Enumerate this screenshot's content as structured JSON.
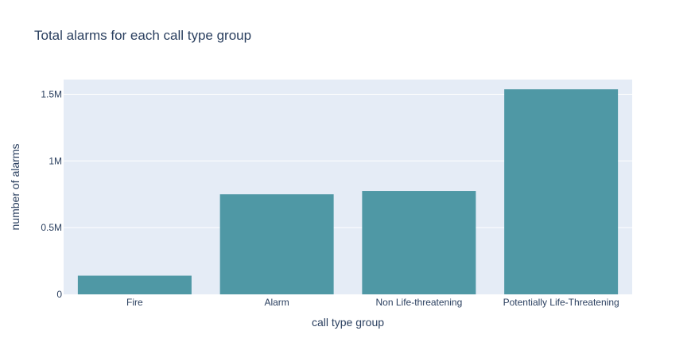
{
  "colors": {
    "plot_background": "#e5ecf6",
    "gridline": "#ffffff",
    "bar": "#4f98a5",
    "text": "#2a3f5f"
  },
  "chart_data": {
    "type": "bar",
    "title": "Total alarms for each call type group",
    "xlabel": "call type group",
    "ylabel": "number of alarms",
    "categories": [
      "Fire",
      "Alarm",
      "Non Life-threatening",
      "Potentially Life-Threatening"
    ],
    "values": [
      140000,
      750000,
      775000,
      1537000
    ],
    "ylim": [
      0,
      1610000
    ],
    "yticks": [
      {
        "value": 0,
        "label": "0"
      },
      {
        "value": 500000,
        "label": "0.5M"
      },
      {
        "value": 1000000,
        "label": "1M"
      },
      {
        "value": 1500000,
        "label": "1.5M"
      }
    ],
    "grid": true,
    "legend": "none"
  }
}
